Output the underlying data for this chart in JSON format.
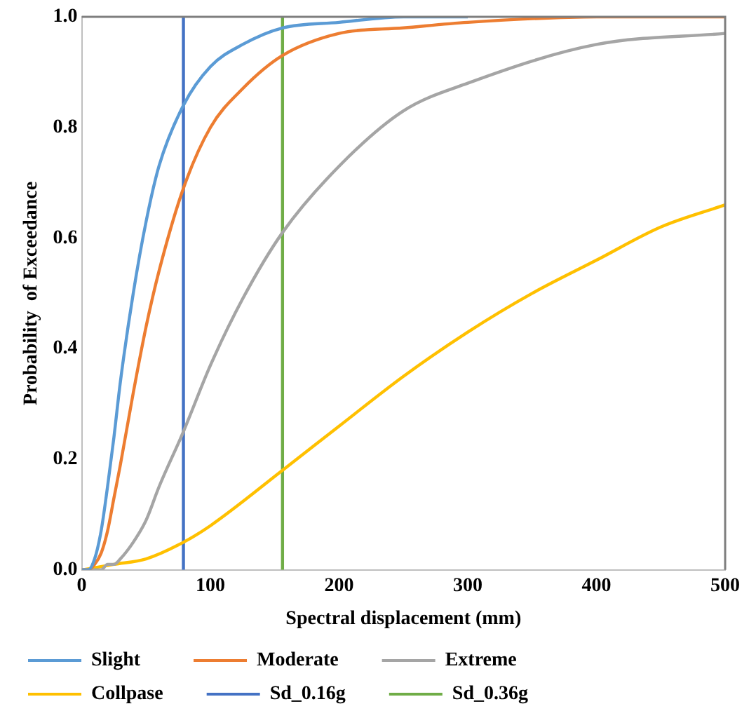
{
  "chart_data": {
    "type": "line",
    "xlabel": "Spectral displacement (mm)",
    "ylabel": "Probability  of Exceedance",
    "xlim": [
      0,
      500
    ],
    "xticks": [
      0,
      100,
      200,
      300,
      400,
      500
    ],
    "ylim": [
      0,
      1
    ],
    "yticks": [
      {
        "value": 0,
        "label": "0.0"
      },
      {
        "value": 0.2,
        "label": "0.2"
      },
      {
        "value": 0.4,
        "label": "0.4"
      },
      {
        "value": 0.6,
        "label": "0.6"
      },
      {
        "value": 0.8,
        "label": "0.8"
      },
      {
        "value": 1,
        "label": "1.0"
      }
    ],
    "grid": false,
    "legend": "bottom",
    "marker": "none",
    "line_style": "solid",
    "series": [
      {
        "name": "Slight",
        "color": "#5b9bd5",
        "x": [
          0,
          5,
          10,
          15,
          20,
          25,
          30,
          40,
          50,
          60,
          79,
          100,
          125,
          156,
          200,
          250,
          300
        ],
        "values": [
          0,
          0,
          0.02,
          0.07,
          0.15,
          0.24,
          0.34,
          0.5,
          0.63,
          0.73,
          0.84,
          0.91,
          0.95,
          0.98,
          0.99,
          1,
          1
        ]
      },
      {
        "name": "Moderate",
        "color": "#ed7d31",
        "x": [
          0,
          5,
          10,
          15,
          20,
          25,
          30,
          40,
          50,
          60,
          79,
          100,
          125,
          156,
          200,
          250,
          300,
          400,
          500
        ],
        "values": [
          0,
          0,
          0.01,
          0.03,
          0.07,
          0.13,
          0.19,
          0.32,
          0.44,
          0.54,
          0.69,
          0.8,
          0.87,
          0.93,
          0.97,
          0.98,
          0.99,
          1,
          1
        ]
      },
      {
        "name": "Extreme",
        "color": "#a5a5a5",
        "x": [
          0,
          5,
          10,
          15,
          20,
          25,
          30,
          40,
          50,
          60,
          79,
          100,
          125,
          156,
          200,
          250,
          300,
          400,
          500
        ],
        "values": [
          0,
          0,
          0,
          0,
          0.01,
          0.01,
          0.02,
          0.05,
          0.09,
          0.15,
          0.25,
          0.37,
          0.49,
          0.61,
          0.73,
          0.83,
          0.88,
          0.95,
          0.97
        ]
      },
      {
        "name": "Collpase",
        "color": "#ffc000",
        "x": [
          0,
          25,
          50,
          79,
          100,
          156,
          200,
          250,
          300,
          350,
          400,
          450,
          500
        ],
        "values": [
          0,
          0.01,
          0.02,
          0.05,
          0.08,
          0.18,
          0.26,
          0.35,
          0.43,
          0.5,
          0.56,
          0.62,
          0.66
        ]
      },
      {
        "name": "Sd_0.16g",
        "color": "#4472c4",
        "x": [
          79,
          79
        ],
        "values": [
          0,
          1
        ]
      },
      {
        "name": "Sd_0.36g",
        "color": "#70ad47",
        "x": [
          156,
          156
        ],
        "values": [
          0,
          1
        ]
      }
    ]
  }
}
